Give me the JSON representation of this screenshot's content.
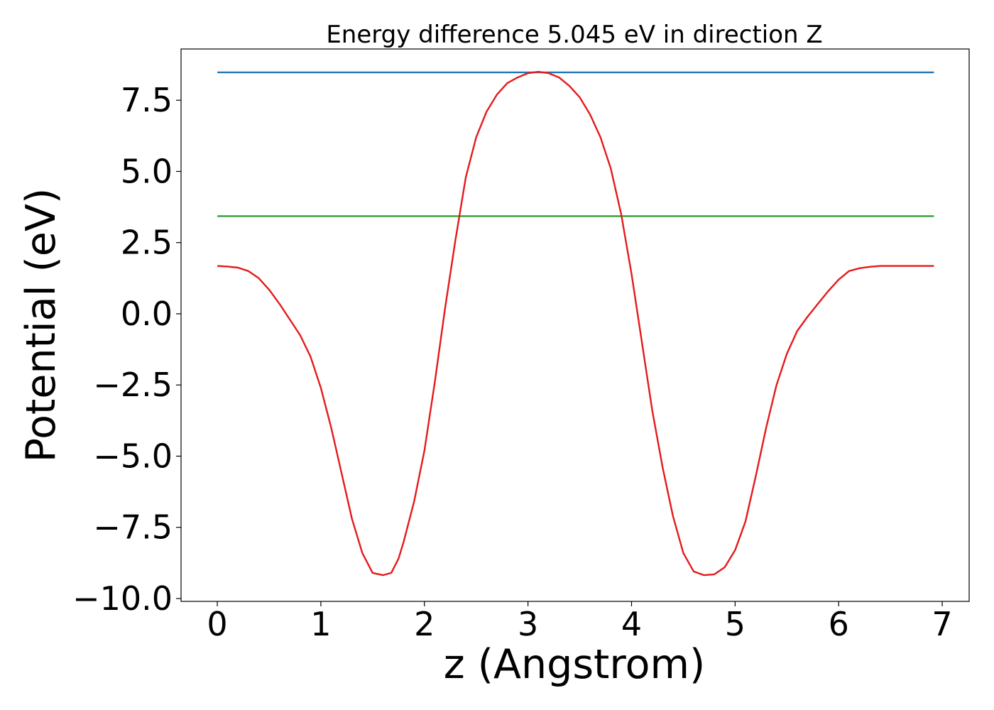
{
  "chart_data": {
    "type": "line",
    "title": "Energy difference 5.045 eV in direction Z",
    "xlabel": "z (Angstrom)",
    "ylabel": "Potential (eV)",
    "xlim": [
      -0.35,
      7.26
    ],
    "ylim": [
      -10.1,
      9.3
    ],
    "xticks": [
      0,
      1,
      2,
      3,
      4,
      5,
      6,
      7
    ],
    "xtick_labels": [
      "0",
      "1",
      "2",
      "3",
      "4",
      "5",
      "6",
      "7"
    ],
    "yticks": [
      -10.0,
      -7.5,
      -5.0,
      -2.5,
      0.0,
      2.5,
      5.0,
      7.5
    ],
    "ytick_labels": [
      "−10.0",
      "−7.5",
      "−5.0",
      "−2.5",
      "0.0",
      "2.5",
      "5.0",
      "7.5"
    ],
    "grid": false,
    "series": [
      {
        "color": "#1f77b4",
        "x": [
          0,
          6.92
        ],
        "y": [
          8.48,
          8.48
        ]
      },
      {
        "color": "#2ca02c",
        "x": [
          0,
          6.92
        ],
        "y": [
          3.43,
          3.43
        ]
      },
      {
        "color": "#e41a1c",
        "x": [
          0,
          0.1,
          0.2,
          0.3,
          0.4,
          0.5,
          0.6,
          0.7,
          0.8,
          0.9,
          1.0,
          1.1,
          1.2,
          1.3,
          1.4,
          1.5,
          1.6,
          1.68,
          1.75,
          1.8,
          1.9,
          2.0,
          2.1,
          2.2,
          2.3,
          2.4,
          2.5,
          2.6,
          2.7,
          2.8,
          2.9,
          3.0,
          3.1,
          3.2,
          3.3,
          3.4,
          3.5,
          3.6,
          3.7,
          3.8,
          3.9,
          4.0,
          4.1,
          4.2,
          4.3,
          4.4,
          4.5,
          4.6,
          4.7,
          4.8,
          4.9,
          5.0,
          5.1,
          5.2,
          5.3,
          5.4,
          5.5,
          5.6,
          5.7,
          5.8,
          5.9,
          6.0,
          6.1,
          6.2,
          6.3,
          6.4,
          6.5,
          6.6,
          6.7,
          6.8,
          6.92
        ],
        "y": [
          1.68,
          1.66,
          1.62,
          1.5,
          1.25,
          0.85,
          0.35,
          -0.2,
          -0.75,
          -1.5,
          -2.6,
          -4.0,
          -5.6,
          -7.2,
          -8.4,
          -9.1,
          -9.18,
          -9.1,
          -8.6,
          -8.0,
          -6.6,
          -4.8,
          -2.4,
          0.2,
          2.6,
          4.8,
          6.2,
          7.1,
          7.7,
          8.1,
          8.3,
          8.45,
          8.5,
          8.45,
          8.3,
          8.0,
          7.6,
          7.0,
          6.2,
          5.1,
          3.5,
          1.4,
          -1.0,
          -3.4,
          -5.4,
          -7.1,
          -8.4,
          -9.05,
          -9.18,
          -9.15,
          -8.9,
          -8.3,
          -7.3,
          -5.7,
          -4.0,
          -2.5,
          -1.4,
          -0.6,
          -0.1,
          0.35,
          0.8,
          1.2,
          1.5,
          1.6,
          1.65,
          1.68,
          1.68,
          1.68,
          1.68,
          1.68,
          1.68
        ]
      }
    ]
  }
}
